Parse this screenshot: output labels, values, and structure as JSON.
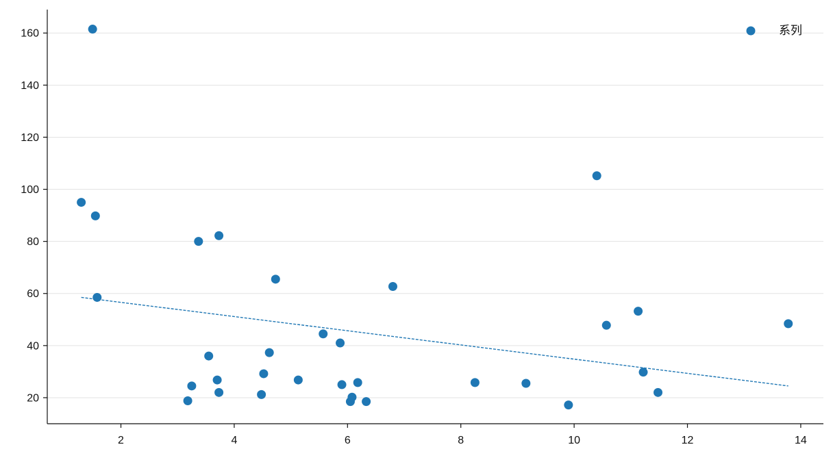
{
  "chart_data": {
    "type": "scatter",
    "title": "",
    "xlabel": "",
    "ylabel": "",
    "xlim": [
      0.7,
      14.4
    ],
    "ylim": [
      10,
      169
    ],
    "x_ticks": [
      2,
      4,
      6,
      8,
      10,
      12,
      14
    ],
    "y_ticks": [
      20,
      40,
      60,
      80,
      100,
      120,
      140,
      160
    ],
    "grid": "horizontal",
    "legend": {
      "placement": "top-right",
      "entries": [
        "系列"
      ]
    },
    "series": [
      {
        "name": "系列",
        "color": "#1f77b4",
        "points": [
          [
            1.5,
            161.5
          ],
          [
            1.3,
            95
          ],
          [
            1.55,
            89.8
          ],
          [
            1.58,
            58.5
          ],
          [
            3.18,
            18.8
          ],
          [
            3.25,
            24.5
          ],
          [
            3.37,
            80
          ],
          [
            3.55,
            36
          ],
          [
            3.7,
            26.8
          ],
          [
            3.73,
            22
          ],
          [
            3.73,
            82.2
          ],
          [
            4.48,
            21.2
          ],
          [
            4.52,
            29.2
          ],
          [
            4.62,
            37.3
          ],
          [
            4.73,
            65.5
          ],
          [
            5.13,
            26.8
          ],
          [
            5.57,
            44.5
          ],
          [
            5.87,
            41
          ],
          [
            5.9,
            25
          ],
          [
            6.05,
            18.5
          ],
          [
            6.08,
            20.2
          ],
          [
            6.18,
            25.8
          ],
          [
            6.33,
            18.5
          ],
          [
            6.8,
            62.7
          ],
          [
            8.25,
            25.8
          ],
          [
            9.15,
            25.5
          ],
          [
            9.9,
            17.2
          ],
          [
            10.4,
            105.2
          ],
          [
            10.57,
            47.8
          ],
          [
            11.13,
            53.2
          ],
          [
            11.22,
            29.8
          ],
          [
            11.48,
            22
          ],
          [
            13.78,
            48.4
          ]
        ],
        "trend_line": {
          "style": "dashed",
          "start": [
            1.3,
            58.5
          ],
          "end": [
            13.78,
            24.5
          ]
        }
      }
    ]
  }
}
